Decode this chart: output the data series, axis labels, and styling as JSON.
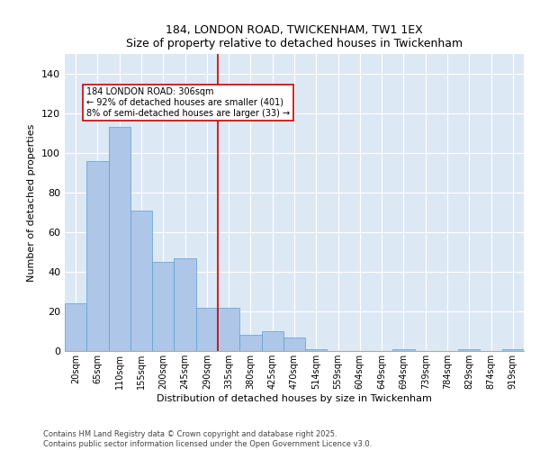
{
  "title": "184, LONDON ROAD, TWICKENHAM, TW1 1EX",
  "subtitle": "Size of property relative to detached houses in Twickenham",
  "xlabel": "Distribution of detached houses by size in Twickenham",
  "ylabel": "Number of detached properties",
  "categories": [
    "20sqm",
    "65sqm",
    "110sqm",
    "155sqm",
    "200sqm",
    "245sqm",
    "290sqm",
    "335sqm",
    "380sqm",
    "425sqm",
    "470sqm",
    "514sqm",
    "559sqm",
    "604sqm",
    "649sqm",
    "694sqm",
    "739sqm",
    "784sqm",
    "829sqm",
    "874sqm",
    "919sqm"
  ],
  "values": [
    24,
    96,
    113,
    71,
    45,
    47,
    22,
    22,
    8,
    10,
    7,
    1,
    0,
    0,
    0,
    1,
    0,
    0,
    1,
    0,
    1
  ],
  "bar_color": "#aec6e8",
  "bar_edge_color": "#5a9fd4",
  "bg_color": "#dde8f5",
  "vline_color": "#cc0000",
  "annotation_text": "184 LONDON ROAD: 306sqm\n← 92% of detached houses are smaller (401)\n8% of semi-detached houses are larger (33) →",
  "annotation_box_color": "#cc0000",
  "ylim": [
    0,
    150
  ],
  "yticks": [
    0,
    20,
    40,
    60,
    80,
    100,
    120,
    140
  ],
  "footer1": "Contains HM Land Registry data © Crown copyright and database right 2025.",
  "footer2": "Contains public sector information licensed under the Open Government Licence v3.0."
}
